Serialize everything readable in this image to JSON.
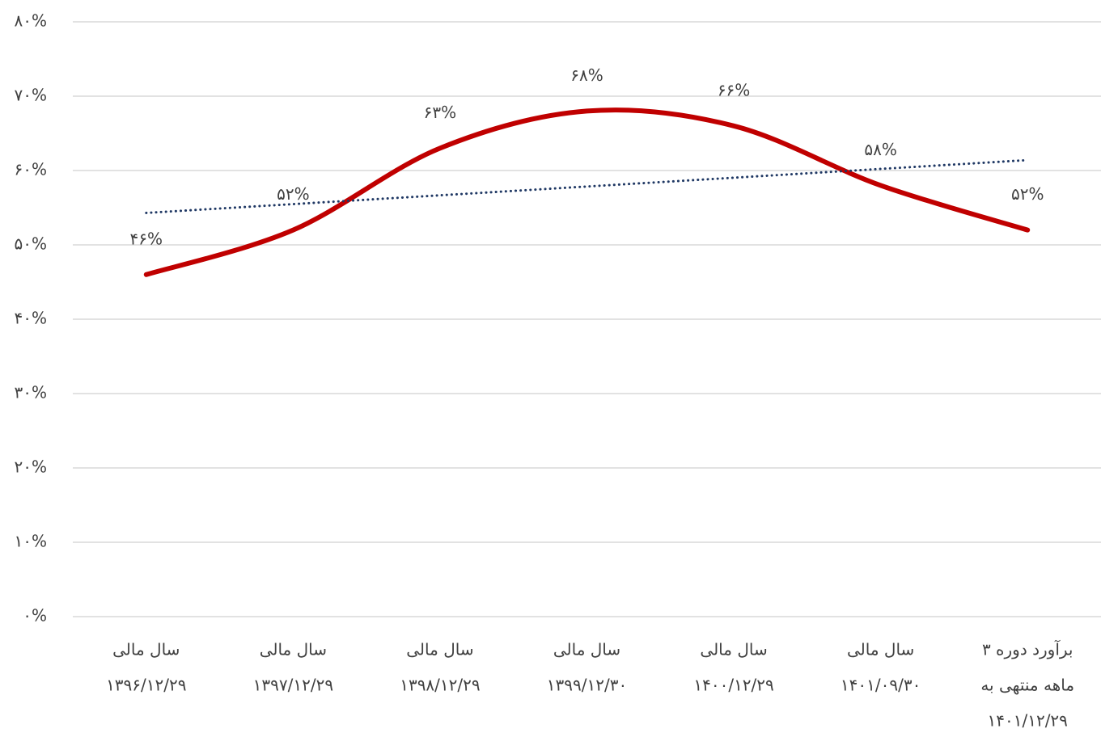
{
  "chart_data": {
    "type": "line",
    "categories": [
      [
        "سال مالی",
        "۱۳۹۶/۱۲/۲۹"
      ],
      [
        "سال مالی",
        "۱۳۹۷/۱۲/۲۹"
      ],
      [
        "سال مالی",
        "۱۳۹۸/۱۲/۲۹"
      ],
      [
        "سال مالی",
        "۱۳۹۹/۱۲/۳۰"
      ],
      [
        "سال مالی",
        "۱۴۰۰/۱۲/۲۹"
      ],
      [
        "سال مالی",
        "۱۴۰۱/۰۹/۳۰"
      ],
      [
        "برآورد دوره ۳",
        "ماهه منتهی به",
        "۱۴۰۱/۱۲/۲۹"
      ]
    ],
    "series": [
      {
        "color": "#c00000",
        "values": [
          46,
          52,
          63,
          68,
          66,
          58,
          52
        ],
        "value_labels": [
          "۴۶%",
          "۵۲%",
          "۶۳%",
          "۶۸%",
          "۶۶%",
          "۵۸%",
          "۵۲%"
        ]
      }
    ],
    "trendline": {
      "color": "#1f3864",
      "values": [
        54.3,
        61.4
      ]
    },
    "smooth": true,
    "ylim": [
      0,
      80
    ],
    "yticks": [
      {
        "value": 0,
        "label": "۰%"
      },
      {
        "value": 10,
        "label": "۱۰%"
      },
      {
        "value": 20,
        "label": "۲۰%"
      },
      {
        "value": 30,
        "label": "۳۰%"
      },
      {
        "value": 40,
        "label": "۴۰%"
      },
      {
        "value": 50,
        "label": "۵۰%"
      },
      {
        "value": 60,
        "label": "۶۰%"
      },
      {
        "value": 70,
        "label": "۷۰%"
      },
      {
        "value": 80,
        "label": "۸۰%"
      }
    ],
    "grid": true
  }
}
